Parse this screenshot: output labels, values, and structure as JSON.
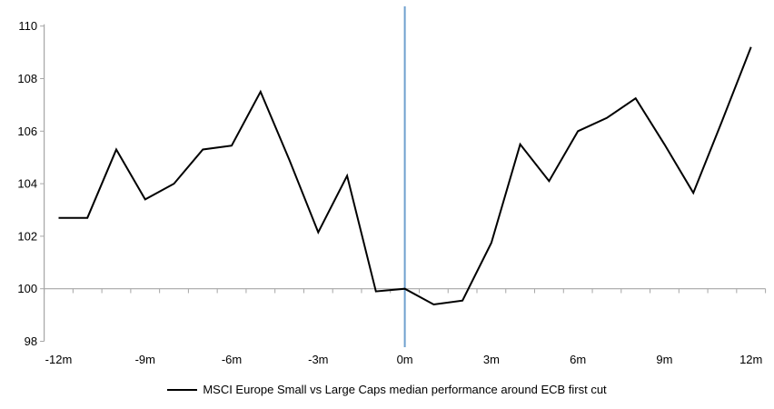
{
  "chart_data": {
    "type": "line",
    "title": "",
    "legend_position": "bottom-center",
    "x": [
      -12,
      -11,
      -10,
      -9,
      -8,
      -7,
      -6,
      -5,
      -4,
      -3,
      -2,
      -1,
      0,
      1,
      2,
      3,
      4,
      5,
      6,
      7,
      8,
      9,
      10,
      11,
      12
    ],
    "series": [
      {
        "name": "MSCI Europe Small vs Large Caps median performance around ECB first cut",
        "color": "#000000",
        "values": [
          102.7,
          102.7,
          105.3,
          103.4,
          104.0,
          105.3,
          105.45,
          107.5,
          104.9,
          102.15,
          104.3,
          99.9,
          100.0,
          99.4,
          99.55,
          101.75,
          105.5,
          104.1,
          106.0,
          106.5,
          107.25,
          105.5,
          103.65,
          106.4,
          109.2
        ]
      }
    ],
    "xlim": [
      -12.5,
      12.5
    ],
    "ylim": [
      98,
      110
    ],
    "xtick_positions": [
      -12,
      -9,
      -6,
      -3,
      0,
      3,
      6,
      9,
      12
    ],
    "xtick_labels": [
      "-12m",
      "-9m",
      "-6m",
      "-3m",
      "0m",
      "3m",
      "6m",
      "9m",
      "12m"
    ],
    "yticks": [
      98,
      100,
      102,
      104,
      106,
      108,
      110
    ],
    "ytick_labels": [
      "98",
      "100",
      "102",
      "104",
      "106",
      "108",
      "110"
    ],
    "baseline_value": 100,
    "minor_xtick_interval_months": 1,
    "event_line": {
      "x": 0,
      "color": "#6FA0CE"
    },
    "axis_color": "#A6A6A6",
    "grid": "single horizontal line at 100 only"
  }
}
